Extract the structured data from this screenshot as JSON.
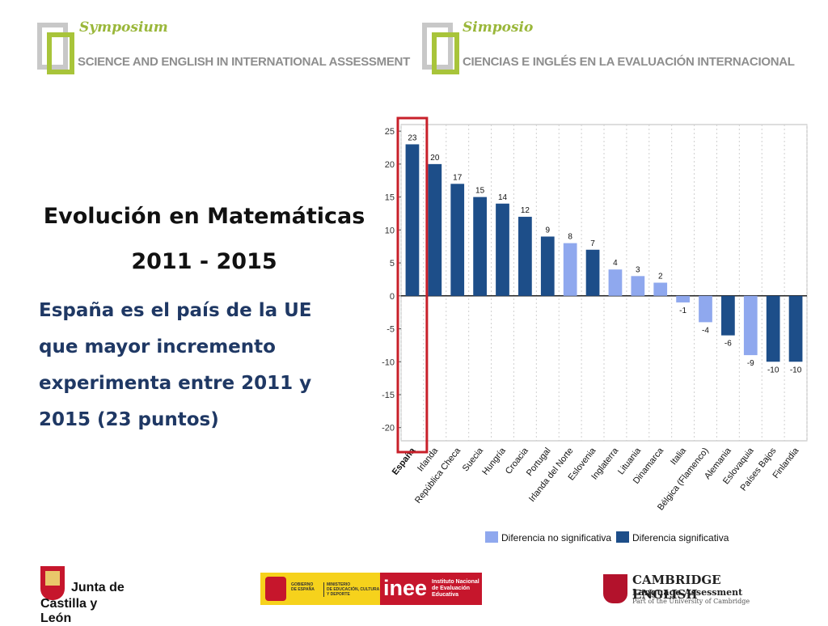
{
  "header": {
    "left": {
      "title": "Symposium",
      "subtitle": "SCIENCE AND ENGLISH IN INTERNATIONAL ASSESSMENT"
    },
    "right": {
      "title": "Simposio",
      "subtitle": "CIENCIAS E INGLÉS EN LA  EVALUACIÓN INTERNACIONAL"
    }
  },
  "slide": {
    "heading_line1": "Evolución en Matemáticas",
    "heading_line2": "2011 - 2015",
    "body_lines": [
      "España es el país de la UE",
      "que mayor incremento",
      "experimenta entre 2011 y",
      "2015 (23 puntos)"
    ]
  },
  "colors": {
    "significant": "#1d4e89",
    "not_significant": "#8fa8ee",
    "highlight": "#c8202a",
    "symposium_green": "#9ab73a"
  },
  "chart_data": {
    "type": "bar",
    "categories": [
      "España",
      "Irlanda",
      "República Checa",
      "Suecia",
      "Hungría",
      "Croacia",
      "Portugal",
      "Irlanda del Norte",
      "Eslovenia",
      "Inglaterra",
      "Lituania",
      "Dinamarca",
      "Italia",
      "Bélgica (Flamenco)",
      "Alemania",
      "Eslovaquia",
      "Países Bajos",
      "Finlandia"
    ],
    "values": [
      23,
      20,
      17,
      15,
      14,
      12,
      9,
      8,
      7,
      4,
      3,
      2,
      -1,
      -4,
      -6,
      -9,
      -10,
      -10
    ],
    "significant": [
      true,
      true,
      true,
      true,
      true,
      true,
      true,
      false,
      true,
      false,
      false,
      false,
      false,
      false,
      true,
      false,
      true,
      true
    ],
    "ylim": [
      -22,
      26
    ],
    "yticks": [
      25,
      20,
      15,
      10,
      5,
      0,
      -5,
      -10,
      -15,
      -20
    ],
    "grid": "vertical-dotted",
    "highlight_category": "España",
    "legend": [
      {
        "label": "Diferencia no significativa",
        "color": "#8fa8ee"
      },
      {
        "label": "Diferencia significativa",
        "color": "#1d4e89"
      }
    ],
    "title": "",
    "xlabel": "",
    "ylabel": ""
  },
  "footer": {
    "jcyl": [
      "Junta de",
      "Castilla y León"
    ],
    "gobierno": [
      "GOBIERNO",
      "DE ESPAÑA"
    ],
    "ministerio": [
      "MINISTERIO",
      "DE EDUCACIÓN, CULTURA",
      "Y DEPORTE"
    ],
    "inee_big": "inee",
    "inee_small": [
      "Instituto Nacional",
      "de Evaluación",
      "Educativa"
    ],
    "cambridge": [
      "CAMBRIDGE ENGLISH",
      "Language Assessment",
      "Part of the University of Cambridge"
    ]
  }
}
